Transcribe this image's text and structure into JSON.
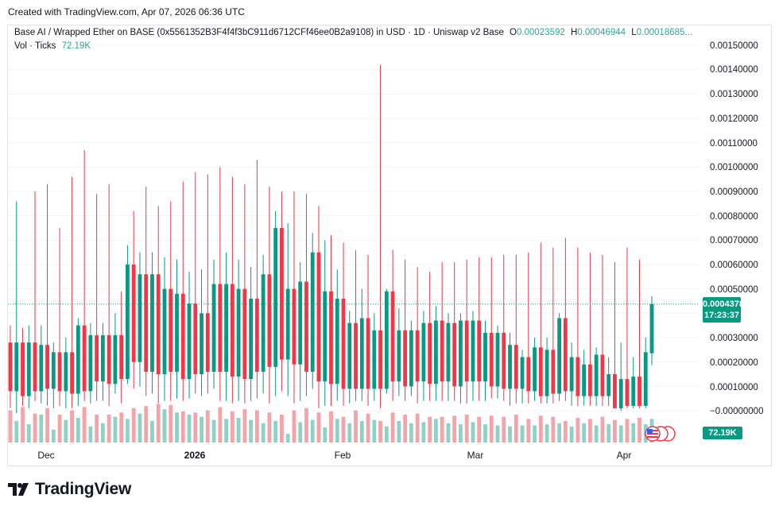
{
  "header": {
    "created_text": "Created with TradingView.com, Apr 07, 2026 06:36 UTC"
  },
  "legend": {
    "symbol_text": "Base AI / Wrapped Ether on BASE (0x5561352B3F4f4f3bC911d6712CFf46ee0B2a9108) in USD · 1D · Uniswap v2 Base",
    "open_key": "O",
    "open_value": "0.00023592",
    "high_key": "H",
    "high_value": "0.00046944",
    "low_key": "L",
    "low_value": "0.00018685...",
    "vol_label": "Vol · Ticks",
    "vol_value": "72.19K"
  },
  "price_scale": {
    "tick_labels": [
      "0.00150000",
      "0.00140000",
      "0.00130000",
      "0.00120000",
      "0.00110000",
      "0.00100000",
      "0.00090000",
      "0.00080000",
      "0.00070000",
      "0.00060000",
      "0.00050000",
      "0.00030000",
      "0.00020000",
      "0.00010000",
      "−0.00000000",
      "0000"
    ],
    "current_price": "0.00043782",
    "countdown": "17:23:37",
    "volume_badge": "72.19K"
  },
  "time_scale": {
    "labels": [
      "Dec",
      "2026",
      "Feb",
      "Mar",
      "Apr"
    ]
  },
  "branding": {
    "logo_text": "TradingView"
  },
  "colors": {
    "up": "#089981",
    "down": "#f23645",
    "vol_up": "#8fd1c6",
    "vol_down": "#f4a3a8",
    "grid": "#f0f3fa"
  },
  "chart_data": {
    "type": "candlestick",
    "title": "Base AI / Wrapped Ether on BASE (0x5561352B3F4f4f3bC911d6712CFf46ee0B2a9108) in USD · 1D · Uniswap v2 Base",
    "interval": "1D",
    "y_range": [
      -5e-05,
      0.00155
    ],
    "last_price": 0.00043782,
    "candles": [
      {
        "o": 0.00028,
        "h": 0.00035,
        "l": 1e-05,
        "c": 8e-05
      },
      {
        "o": 8e-05,
        "h": 0.00086,
        "l": -1e-05,
        "c": 0.00028
      },
      {
        "o": 0.00028,
        "h": 0.00034,
        "l": 2e-05,
        "c": 6e-05
      },
      {
        "o": 6e-05,
        "h": 0.00035,
        "l": 1e-05,
        "c": 0.00028
      },
      {
        "o": 0.00028,
        "h": 0.0009,
        "l": 4e-05,
        "c": 8e-05
      },
      {
        "o": 8e-05,
        "h": 0.00035,
        "l": 3e-05,
        "c": 0.00027
      },
      {
        "o": 0.00027,
        "h": 0.00093,
        "l": 2e-05,
        "c": 9e-05
      },
      {
        "o": 9e-05,
        "h": 0.00028,
        "l": 1e-05,
        "c": 0.00024
      },
      {
        "o": 0.00024,
        "h": 0.00075,
        "l": 2e-05,
        "c": 8e-05
      },
      {
        "o": 8e-05,
        "h": 0.0003,
        "l": 1e-05,
        "c": 0.00024
      },
      {
        "o": 0.00024,
        "h": 0.00096,
        "l": 1e-05,
        "c": 7e-05
      },
      {
        "o": 7e-05,
        "h": 0.00038,
        "l": 2e-05,
        "c": 0.00035
      },
      {
        "o": 0.00035,
        "h": 0.00107,
        "l": 4e-05,
        "c": 8e-05
      },
      {
        "o": 8e-05,
        "h": 0.00036,
        "l": 3e-05,
        "c": 0.00031
      },
      {
        "o": 0.00031,
        "h": 0.00089,
        "l": 4e-05,
        "c": 0.00012
      },
      {
        "o": 0.00012,
        "h": 0.00036,
        "l": 4e-05,
        "c": 0.00031
      },
      {
        "o": 0.00031,
        "h": 0.00093,
        "l": 2e-05,
        "c": 0.00011
      },
      {
        "o": 0.00011,
        "h": 0.0004,
        "l": 7e-05,
        "c": 0.00031
      },
      {
        "o": 0.00031,
        "h": 0.00049,
        "l": 3e-05,
        "c": 0.00013
      },
      {
        "o": 0.00013,
        "h": 0.00068,
        "l": 0.00011,
        "c": 0.0006
      },
      {
        "o": 0.0006,
        "h": 0.00082,
        "l": 9e-05,
        "c": 0.0002
      },
      {
        "o": 0.0002,
        "h": 0.00065,
        "l": 0.0001,
        "c": 0.00056
      },
      {
        "o": 0.00056,
        "h": 0.00092,
        "l": 6e-05,
        "c": 0.00016
      },
      {
        "o": 0.00016,
        "h": 0.00065,
        "l": 7e-05,
        "c": 0.00056
      },
      {
        "o": 0.00056,
        "h": 0.00084,
        "l": 3e-05,
        "c": 0.00015
      },
      {
        "o": 0.00015,
        "h": 0.00063,
        "l": 4e-05,
        "c": 0.0005
      },
      {
        "o": 0.0005,
        "h": 0.00086,
        "l": 4e-05,
        "c": 0.00016
      },
      {
        "o": 0.00016,
        "h": 0.00062,
        "l": 5e-05,
        "c": 0.00048
      },
      {
        "o": 0.00048,
        "h": 0.00094,
        "l": 4e-05,
        "c": 0.00013
      },
      {
        "o": 0.00013,
        "h": 0.00057,
        "l": 5e-05,
        "c": 0.00044
      },
      {
        "o": 0.00044,
        "h": 0.00098,
        "l": 7e-05,
        "c": 0.00015
      },
      {
        "o": 0.00015,
        "h": 0.00058,
        "l": 6e-05,
        "c": 0.0004
      },
      {
        "o": 0.0004,
        "h": 0.00097,
        "l": 7e-05,
        "c": 0.00016
      },
      {
        "o": 0.00016,
        "h": 0.00062,
        "l": 9e-05,
        "c": 0.00052
      },
      {
        "o": 0.00052,
        "h": 0.001,
        "l": 4e-05,
        "c": 0.00016
      },
      {
        "o": 0.00016,
        "h": 0.00065,
        "l": 4e-05,
        "c": 0.00052
      },
      {
        "o": 0.00052,
        "h": 0.00096,
        "l": 3e-05,
        "c": 0.00014
      },
      {
        "o": 0.00014,
        "h": 0.00062,
        "l": 4e-05,
        "c": 0.0005
      },
      {
        "o": 0.0005,
        "h": 0.00093,
        "l": 3e-05,
        "c": 0.00013
      },
      {
        "o": 0.00013,
        "h": 0.00059,
        "l": 4e-05,
        "c": 0.00046
      },
      {
        "o": 0.00046,
        "h": 0.00103,
        "l": 5e-05,
        "c": 0.00016
      },
      {
        "o": 0.00016,
        "h": 0.00064,
        "l": 7e-05,
        "c": 0.00056
      },
      {
        "o": 0.00056,
        "h": 0.00092,
        "l": 3e-05,
        "c": 0.00018
      },
      {
        "o": 0.00018,
        "h": 0.00082,
        "l": 6e-05,
        "c": 0.00075
      },
      {
        "o": 0.00075,
        "h": 0.0009,
        "l": 8e-05,
        "c": 0.00021
      },
      {
        "o": 0.00021,
        "h": 0.00077,
        "l": 6e-05,
        "c": 0.0005
      },
      {
        "o": 0.0005,
        "h": 0.0009,
        "l": 3e-05,
        "c": 0.00019
      },
      {
        "o": 0.00019,
        "h": 0.00061,
        "l": 4e-05,
        "c": 0.00053
      },
      {
        "o": 0.00053,
        "h": 0.00089,
        "l": 6e-05,
        "c": 0.00016
      },
      {
        "o": 0.00016,
        "h": 0.00073,
        "l": 9e-05,
        "c": 0.00065
      },
      {
        "o": 0.00065,
        "h": 0.00084,
        "l": 1e-05,
        "c": 0.00012
      },
      {
        "o": 0.00012,
        "h": 0.0007,
        "l": 2e-05,
        "c": 0.00049
      },
      {
        "o": 0.00049,
        "h": 0.00072,
        "l": 2e-05,
        "c": 0.00011
      },
      {
        "o": 0.00011,
        "h": 0.00058,
        "l": 4e-05,
        "c": 0.00046
      },
      {
        "o": 0.00046,
        "h": 0.00069,
        "l": 2e-05,
        "c": 9e-05
      },
      {
        "o": 9e-05,
        "h": 0.00041,
        "l": 3e-05,
        "c": 0.00036
      },
      {
        "o": 0.00036,
        "h": 0.00066,
        "l": 4e-05,
        "c": 9e-05
      },
      {
        "o": 9e-05,
        "h": 0.0005,
        "l": 4e-05,
        "c": 0.00038
      },
      {
        "o": 0.00038,
        "h": 0.00064,
        "l": 2e-05,
        "c": 9e-05
      },
      {
        "o": 9e-05,
        "h": 0.0004,
        "l": 4e-05,
        "c": 0.00033
      },
      {
        "o": 0.00033,
        "h": 0.00142,
        "l": 1e-05,
        "c": 9e-05
      },
      {
        "o": 9e-05,
        "h": 0.0005,
        "l": 7e-05,
        "c": 0.00049
      },
      {
        "o": 0.00049,
        "h": 0.00066,
        "l": 4e-05,
        "c": 0.00012
      },
      {
        "o": 0.00012,
        "h": 0.00042,
        "l": 6e-05,
        "c": 0.00033
      },
      {
        "o": 0.00033,
        "h": 0.00062,
        "l": 4e-05,
        "c": 0.0001
      },
      {
        "o": 0.0001,
        "h": 0.00037,
        "l": 6e-05,
        "c": 0.00033
      },
      {
        "o": 0.00033,
        "h": 0.00059,
        "l": 3e-05,
        "c": 0.00012
      },
      {
        "o": 0.00012,
        "h": 0.00041,
        "l": 4e-05,
        "c": 0.00036
      },
      {
        "o": 0.00036,
        "h": 0.00057,
        "l": 4e-05,
        "c": 0.00011
      },
      {
        "o": 0.00011,
        "h": 0.00043,
        "l": 4e-05,
        "c": 0.00037
      },
      {
        "o": 0.00037,
        "h": 0.00061,
        "l": 4e-05,
        "c": 0.00012
      },
      {
        "o": 0.00012,
        "h": 0.0004,
        "l": 4e-05,
        "c": 0.00036
      },
      {
        "o": 0.00036,
        "h": 0.00061,
        "l": 4e-05,
        "c": 0.0001
      },
      {
        "o": 0.0001,
        "h": 0.0004,
        "l": 3e-05,
        "c": 0.00037
      },
      {
        "o": 0.00037,
        "h": 0.00062,
        "l": 3e-05,
        "c": 0.00012
      },
      {
        "o": 0.00012,
        "h": 0.00041,
        "l": 4e-05,
        "c": 0.00037
      },
      {
        "o": 0.00037,
        "h": 0.00063,
        "l": 4e-05,
        "c": 0.00012
      },
      {
        "o": 0.00012,
        "h": 0.00037,
        "l": 4e-05,
        "c": 0.00032
      },
      {
        "o": 0.00032,
        "h": 0.00063,
        "l": 5e-05,
        "c": 0.0001
      },
      {
        "o": 0.0001,
        "h": 0.00035,
        "l": 5e-05,
        "c": 0.00032
      },
      {
        "o": 0.00032,
        "h": 0.00064,
        "l": 4e-05,
        "c": 9e-05
      },
      {
        "o": 9e-05,
        "h": 0.00032,
        "l": 2e-05,
        "c": 0.00027
      },
      {
        "o": 0.00027,
        "h": 0.00064,
        "l": 3e-05,
        "c": 9e-05
      },
      {
        "o": 9e-05,
        "h": 0.00025,
        "l": 3e-05,
        "c": 0.00022
      },
      {
        "o": 0.00022,
        "h": 0.00065,
        "l": 3e-05,
        "c": 8e-05
      },
      {
        "o": 8e-05,
        "h": 0.0003,
        "l": 4e-05,
        "c": 0.00026
      },
      {
        "o": 0.00026,
        "h": 0.00069,
        "l": 3e-05,
        "c": 6e-05
      },
      {
        "o": 6e-05,
        "h": 0.0003,
        "l": 3e-05,
        "c": 0.00025
      },
      {
        "o": 0.00025,
        "h": 0.00067,
        "l": 3e-05,
        "c": 7e-05
      },
      {
        "o": 7e-05,
        "h": 0.0004,
        "l": 4e-05,
        "c": 0.00038
      },
      {
        "o": 0.00038,
        "h": 0.00071,
        "l": 4e-05,
        "c": 8e-05
      },
      {
        "o": 8e-05,
        "h": 0.00028,
        "l": 2e-05,
        "c": 0.00022
      },
      {
        "o": 0.00022,
        "h": 0.00067,
        "l": 2e-05,
        "c": 6e-05
      },
      {
        "o": 6e-05,
        "h": 0.00025,
        "l": 2e-05,
        "c": 0.00019
      },
      {
        "o": 0.00019,
        "h": 0.00065,
        "l": 2e-05,
        "c": 6e-05
      },
      {
        "o": 6e-05,
        "h": 0.00026,
        "l": 2e-05,
        "c": 0.00023
      },
      {
        "o": 0.00023,
        "h": 0.00064,
        "l": 2e-05,
        "c": 6e-05
      },
      {
        "o": 6e-05,
        "h": 0.00022,
        "l": 2e-05,
        "c": 0.00015
      },
      {
        "o": 0.00015,
        "h": 0.00061,
        "l": 1e-05,
        "c": 1e-05
      },
      {
        "o": 1e-05,
        "h": 0.00028,
        "l": 0.0,
        "c": 0.00013
      },
      {
        "o": 0.00013,
        "h": 0.00067,
        "l": 1e-05,
        "c": 2e-05
      },
      {
        "o": 2e-05,
        "h": 0.00022,
        "l": 1e-05,
        "c": 0.00014
      },
      {
        "o": 0.00014,
        "h": 0.00062,
        "l": 1e-05,
        "c": 2e-05
      },
      {
        "o": 2e-05,
        "h": 0.0003,
        "l": 1e-05,
        "c": 0.00024
      },
      {
        "o": 0.00023592,
        "h": 0.00046944,
        "l": 0.00018685,
        "c": 0.00043782
      }
    ],
    "volume": [
      30,
      20,
      33,
      17,
      27,
      26,
      32,
      12,
      26,
      21,
      30,
      23,
      33,
      15,
      26,
      18,
      26,
      24,
      28,
      22,
      32,
      27,
      34,
      20,
      36,
      31,
      35,
      28,
      29,
      26,
      28,
      24,
      30,
      21,
      33,
      22,
      29,
      23,
      31,
      21,
      30,
      18,
      28,
      20,
      26,
      8,
      30,
      19,
      32,
      21,
      28,
      14,
      29,
      22,
      24,
      18,
      30,
      20,
      27,
      21,
      20,
      15,
      28,
      20,
      26,
      18,
      27,
      19,
      24,
      22,
      24,
      18,
      25,
      17,
      26,
      19,
      24,
      17,
      25,
      16,
      24,
      15,
      26,
      16,
      22,
      16,
      25,
      17,
      24,
      18,
      20,
      15,
      23,
      18,
      22,
      16,
      24,
      17,
      21,
      16,
      22,
      18,
      23,
      17,
      22,
      18
    ],
    "volume_y_range": [
      0,
      120
    ]
  }
}
